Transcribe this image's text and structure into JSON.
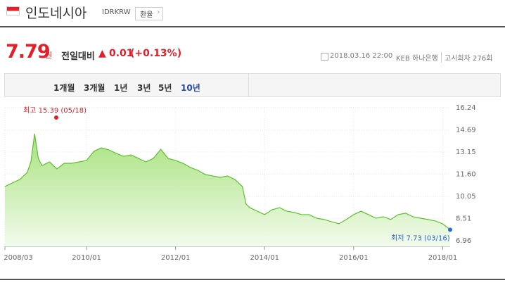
{
  "header": {
    "country": "인도네시아",
    "code": "IDRKRW",
    "button": "환율"
  },
  "price": {
    "value": "7.79",
    "unit": "원",
    "change_label": "전일대비",
    "change_sign": "▲",
    "change": "0.01",
    "change_pct": "(+0.13%)"
  },
  "info": {
    "datetime": "2018.03.16 22:00",
    "bank": "KEB 하나은행",
    "round": "고시회차 276회"
  },
  "tabs": {
    "items": [
      "1개월",
      "3개월",
      "1년",
      "3년",
      "5년",
      "10년"
    ],
    "active": 5
  },
  "chart_data": {
    "type": "area",
    "color": "#5cc02f",
    "x": [
      "2008/03",
      "2008/05",
      "2008/07",
      "2008/09",
      "2008/10",
      "2008/11",
      "2008/12",
      "2009/01",
      "2009/03",
      "2009/05",
      "2009/07",
      "2009/09",
      "2009/11",
      "2010/01",
      "2010/03",
      "2010/05",
      "2010/07",
      "2010/09",
      "2010/11",
      "2011/01",
      "2011/03",
      "2011/05",
      "2011/07",
      "2011/09",
      "2011/11",
      "2012/01",
      "2012/03",
      "2012/05",
      "2012/07",
      "2012/09",
      "2012/11",
      "2013/01",
      "2013/03",
      "2013/05",
      "2013/07",
      "2013/08",
      "2013/09",
      "2013/11",
      "2014/01",
      "2014/03",
      "2014/05",
      "2014/07",
      "2014/09",
      "2014/11",
      "2015/01",
      "2015/03",
      "2015/05",
      "2015/07",
      "2015/09",
      "2015/11",
      "2016/01",
      "2016/03",
      "2016/05",
      "2016/07",
      "2016/09",
      "2016/11",
      "2017/01",
      "2017/03",
      "2017/05",
      "2017/07",
      "2017/09",
      "2017/11",
      "2018/01",
      "2018/03"
    ],
    "values": [
      10.74,
      10.99,
      11.23,
      11.72,
      12.46,
      14.42,
      12.7,
      12.2,
      12.46,
      11.97,
      12.36,
      12.36,
      12.46,
      12.56,
      13.2,
      13.44,
      13.3,
      13.05,
      12.85,
      12.95,
      12.7,
      12.46,
      12.7,
      13.34,
      12.7,
      12.56,
      12.36,
      12.07,
      11.87,
      11.58,
      11.48,
      11.38,
      11.48,
      11.23,
      10.74,
      9.51,
      9.27,
      9.02,
      8.78,
      9.12,
      9.27,
      9.02,
      8.93,
      8.78,
      8.78,
      8.53,
      8.44,
      8.29,
      8.14,
      8.44,
      8.78,
      9.02,
      8.78,
      8.53,
      8.63,
      8.44,
      8.78,
      8.88,
      8.63,
      8.53,
      8.44,
      8.34,
      8.14,
      7.73
    ],
    "xlim": [
      "2008/03",
      "2018/03"
    ],
    "xticks": [
      "2008/03",
      "2010/01",
      "2012/01",
      "2014/01",
      "2016/01",
      "2018/01"
    ],
    "ylim": [
      6.96,
      16.24
    ],
    "yticks": [
      16.24,
      14.69,
      13.15,
      {
        "value": 11.6,
        "label": "11.60"
      },
      10.05,
      8.51,
      6.96
    ],
    "grid": true,
    "max_annotation": "최고 15.39 (05/18)",
    "min_annotation": "최저 7.73 (03/16)"
  }
}
